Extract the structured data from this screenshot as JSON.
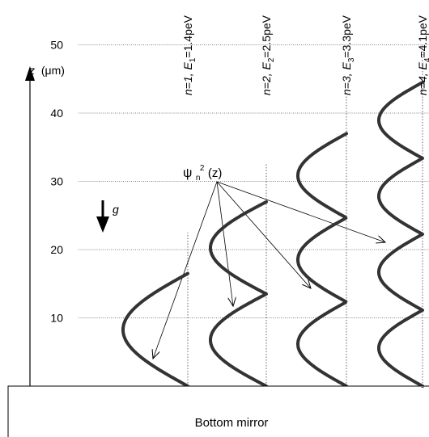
{
  "axis": {
    "variable": "z",
    "unit": "(μm)",
    "ticks": [
      10,
      20,
      30,
      40,
      50
    ]
  },
  "gravity_label": "g",
  "wavefunction_label": {
    "psi": "ψ",
    "sub": "n",
    "sup": "2",
    "arg": "(z)"
  },
  "mirror_label": "Bottom mirror",
  "levels": [
    {
      "n": "n=1, ",
      "E": "E",
      "sub": "1",
      "value": "=1.4peV",
      "height_um": 22.5,
      "peaks": 1
    },
    {
      "n": "n=2, ",
      "E": "E",
      "sub": "2",
      "value": "=2.5peV",
      "height_um": 32.5,
      "peaks": 2
    },
    {
      "n": "n=3, ",
      "E": "E",
      "sub": "3",
      "value": "=3.3peV",
      "height_um": 42.5,
      "peaks": 3
    },
    {
      "n": "n=4, ",
      "E": "E",
      "sub": "4",
      "value": "=4.1peV",
      "height_um": 50,
      "peaks": 4
    }
  ]
}
